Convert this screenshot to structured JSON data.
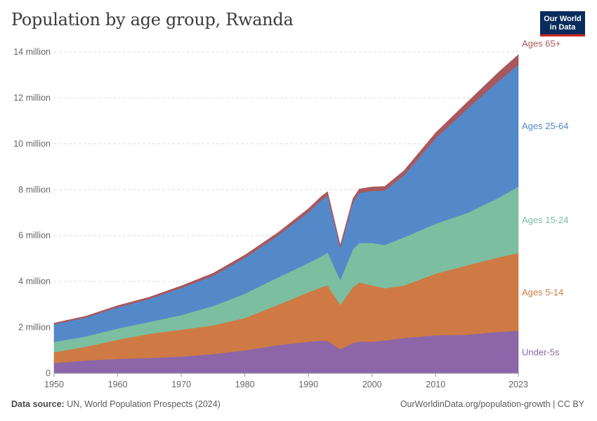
{
  "title": "Population by age group, Rwanda",
  "logo": {
    "line1": "Our World",
    "line2": "in Data"
  },
  "footer": {
    "source_label": "Data source:",
    "source_text": "UN, World Population Prospects (2024)",
    "url": "OurWorldinData.org/population-growth | CC BY"
  },
  "chart_data": {
    "type": "area",
    "stacked": true,
    "title": "Population by age group, Rwanda",
    "x": [
      1950,
      1955,
      1960,
      1965,
      1970,
      1975,
      1980,
      1985,
      1990,
      1992,
      1993,
      1995,
      1997,
      1998,
      2000,
      2002,
      2005,
      2010,
      2015,
      2020,
      2023
    ],
    "xticks": [
      1950,
      1960,
      1970,
      1980,
      1990,
      2000,
      2010,
      2023
    ],
    "ylim": [
      0,
      14000000
    ],
    "yticks": [
      0,
      2000000,
      4000000,
      6000000,
      8000000,
      10000000,
      12000000,
      14000000
    ],
    "ytick_labels": [
      "0",
      "2 million",
      "4 million",
      "6 million",
      "8 million",
      "10 million",
      "12 million",
      "14 million"
    ],
    "grid": true,
    "legend_position": "right",
    "series": [
      {
        "name": "Under-5s",
        "color": "#8c66a8",
        "values": [
          450000,
          560000,
          630000,
          670000,
          730000,
          840000,
          1000000,
          1220000,
          1380000,
          1420000,
          1410000,
          1050000,
          1330000,
          1380000,
          1380000,
          1430000,
          1540000,
          1660000,
          1680000,
          1810000,
          1860000
        ]
      },
      {
        "name": "Ages 5-14",
        "color": "#cf7a44",
        "values": [
          470000,
          600000,
          830000,
          1050000,
          1170000,
          1250000,
          1410000,
          1740000,
          2150000,
          2330000,
          2420000,
          1940000,
          2420000,
          2580000,
          2450000,
          2280000,
          2280000,
          2680000,
          3030000,
          3250000,
          3380000
        ]
      },
      {
        "name": "Ages 15-24",
        "color": "#7bbea0",
        "values": [
          450000,
          450000,
          490000,
          520000,
          640000,
          840000,
          1060000,
          1190000,
          1280000,
          1340000,
          1430000,
          1080000,
          1660000,
          1720000,
          1850000,
          1880000,
          2100000,
          2180000,
          2280000,
          2600000,
          2900000
        ]
      },
      {
        "name": "Ages 25-64",
        "color": "#5489c9",
        "values": [
          760000,
          820000,
          930000,
          1000000,
          1180000,
          1320000,
          1560000,
          1810000,
          2210000,
          2450000,
          2480000,
          1380000,
          2050000,
          2180000,
          2270000,
          2370000,
          2700000,
          3720000,
          4540000,
          5100000,
          5300000
        ]
      },
      {
        "name": "Ages 65+",
        "color": "#a8585d",
        "values": [
          60000,
          60000,
          70000,
          80000,
          90000,
          110000,
          120000,
          130000,
          150000,
          160000,
          170000,
          130000,
          160000,
          170000,
          170000,
          180000,
          200000,
          240000,
          290000,
          380000,
          440000
        ]
      }
    ]
  }
}
